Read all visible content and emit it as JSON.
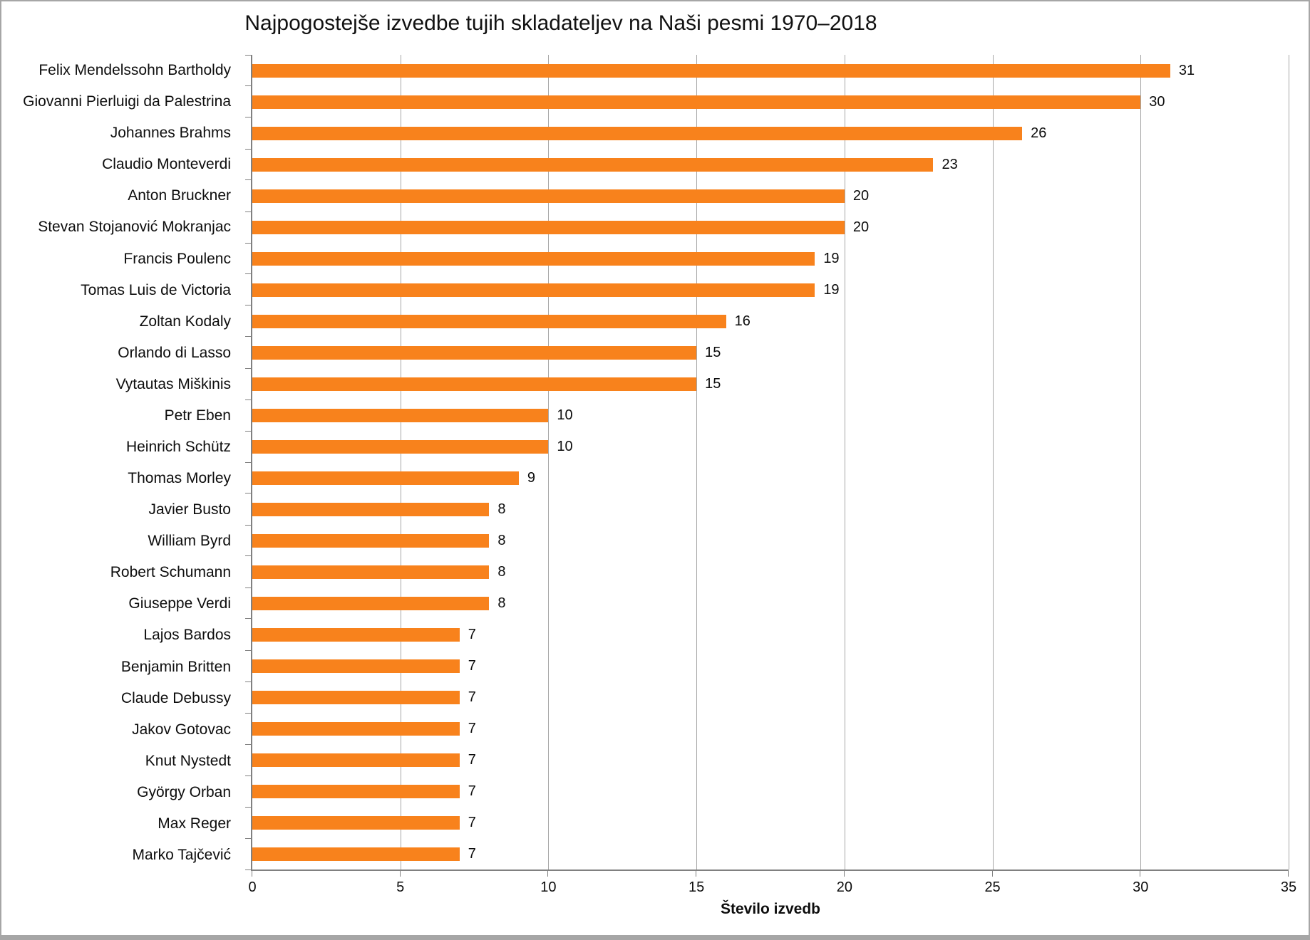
{
  "title": "Najpogostejše izvedbe tujih skladateljev na Naši pesmi 1970–2018",
  "chart_data": {
    "type": "bar",
    "orientation": "horizontal",
    "title": "Najpogostejše izvedbe tujih skladateljev na Naši pesmi 1970–2018",
    "xlabel": "Število izvedb",
    "ylabel": "",
    "xlim": [
      0,
      35
    ],
    "xticks": [
      0,
      5,
      10,
      15,
      20,
      25,
      30,
      35
    ],
    "grid": true,
    "legend": false,
    "bar_color": "#f8821c",
    "gridline_color": "#a6a6a6",
    "axis_color": "#808080",
    "categories": [
      "Felix Mendelssohn Bartholdy",
      "Giovanni Pierluigi da Palestrina",
      "Johannes Brahms",
      "Claudio Monteverdi",
      "Anton Bruckner",
      "Stevan Stojanović Mokranjac",
      "Francis Poulenc",
      "Tomas Luis de Victoria",
      "Zoltan Kodaly",
      "Orlando di Lasso",
      "Vytautas Miškinis",
      "Petr Eben",
      "Heinrich Schütz",
      "Thomas Morley",
      "Javier Busto",
      "William Byrd",
      "Robert Schumann",
      "Giuseppe Verdi",
      "Lajos Bardos",
      "Benjamin Britten",
      "Claude Debussy",
      "Jakov Gotovac",
      "Knut Nystedt",
      "György Orban",
      "Max Reger",
      "Marko Tajčević"
    ],
    "values": [
      31,
      30,
      26,
      23,
      20,
      20,
      19,
      19,
      16,
      15,
      15,
      10,
      10,
      9,
      8,
      8,
      8,
      8,
      7,
      7,
      7,
      7,
      7,
      7,
      7,
      7
    ]
  }
}
